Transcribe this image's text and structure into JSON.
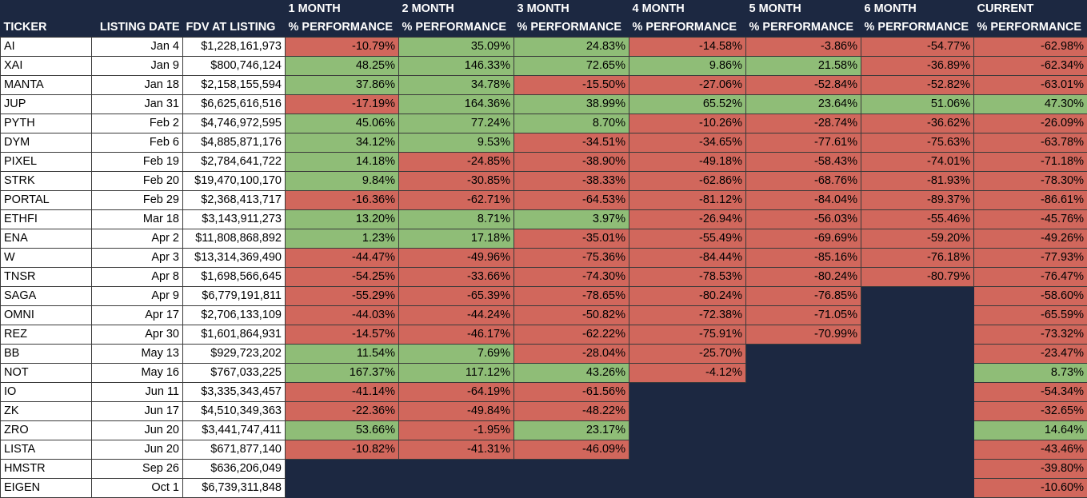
{
  "header": {
    "top": [
      "",
      "",
      "",
      "1 MONTH",
      "2 MONTH",
      "3 MONTH",
      "4 MONTH",
      "5 MONTH",
      "6 MONTH",
      "CURRENT"
    ],
    "bottom": [
      "TICKER",
      "LISTING DATE",
      "FDV AT LISTING",
      "% PERFORMANCE",
      "% PERFORMANCE",
      "% PERFORMANCE",
      "% PERFORMANCE",
      "% PERFORMANCE",
      "% PERFORMANCE",
      "% PERFORMANCE"
    ]
  },
  "colors": {
    "background": "#1c2841",
    "positive": "#8fbd77",
    "negative": "#d1675c"
  },
  "rows": [
    [
      "AI",
      "Jan 4",
      "$1,228,161,973",
      "-10.79%",
      "35.09%",
      "24.83%",
      "-14.58%",
      "-3.86%",
      "-54.77%",
      "-62.98%"
    ],
    [
      "XAI",
      "Jan 9",
      "$800,746,124",
      "48.25%",
      "146.33%",
      "72.65%",
      "9.86%",
      "21.58%",
      "-36.89%",
      "-62.34%"
    ],
    [
      "MANTA",
      "Jan 18",
      "$2,158,155,594",
      "37.86%",
      "34.78%",
      "-15.50%",
      "-27.06%",
      "-52.84%",
      "-52.82%",
      "-63.01%"
    ],
    [
      "JUP",
      "Jan 31",
      "$6,625,616,516",
      "-17.19%",
      "164.36%",
      "38.99%",
      "65.52%",
      "23.64%",
      "51.06%",
      "47.30%"
    ],
    [
      "PYTH",
      "Feb 2",
      "$4,746,972,595",
      "45.06%",
      "77.24%",
      "8.70%",
      "-10.26%",
      "-28.74%",
      "-36.62%",
      "-26.09%"
    ],
    [
      "DYM",
      "Feb 6",
      "$4,885,871,176",
      "34.12%",
      "9.53%",
      "-34.51%",
      "-34.65%",
      "-77.61%",
      "-75.63%",
      "-63.78%"
    ],
    [
      "PIXEL",
      "Feb 19",
      "$2,784,641,722",
      "14.18%",
      "-24.85%",
      "-38.90%",
      "-49.18%",
      "-58.43%",
      "-74.01%",
      "-71.18%"
    ],
    [
      "STRK",
      "Feb 20",
      "$19,470,100,170",
      "9.84%",
      "-30.85%",
      "-38.33%",
      "-62.86%",
      "-68.76%",
      "-81.93%",
      "-78.30%"
    ],
    [
      "PORTAL",
      "Feb 29",
      "$2,368,413,717",
      "-16.36%",
      "-62.71%",
      "-64.53%",
      "-81.12%",
      "-84.04%",
      "-89.37%",
      "-86.61%"
    ],
    [
      "ETHFI",
      "Mar 18",
      "$3,143,911,273",
      "13.20%",
      "8.71%",
      "3.97%",
      "-26.94%",
      "-56.03%",
      "-55.46%",
      "-45.76%"
    ],
    [
      "ENA",
      "Apr 2",
      "$11,808,868,892",
      "1.23%",
      "17.18%",
      "-35.01%",
      "-55.49%",
      "-69.69%",
      "-59.20%",
      "-49.26%"
    ],
    [
      "W",
      "Apr 3",
      "$13,314,369,490",
      "-44.47%",
      "-49.96%",
      "-75.36%",
      "-84.44%",
      "-85.16%",
      "-76.18%",
      "-77.93%"
    ],
    [
      "TNSR",
      "Apr 8",
      "$1,698,566,645",
      "-54.25%",
      "-33.66%",
      "-74.30%",
      "-78.53%",
      "-80.24%",
      "-80.79%",
      "-76.47%"
    ],
    [
      "SAGA",
      "Apr 9",
      "$6,779,191,811",
      "-55.29%",
      "-65.39%",
      "-78.65%",
      "-80.24%",
      "-76.85%",
      "",
      "-58.60%"
    ],
    [
      "OMNI",
      "Apr 17",
      "$2,706,133,109",
      "-44.03%",
      "-44.24%",
      "-50.82%",
      "-72.38%",
      "-71.05%",
      "",
      "-65.59%"
    ],
    [
      "REZ",
      "Apr 30",
      "$1,601,864,931",
      "-14.57%",
      "-46.17%",
      "-62.22%",
      "-75.91%",
      "-70.99%",
      "",
      "-73.32%"
    ],
    [
      "BB",
      "May 13",
      "$929,723,202",
      "11.54%",
      "7.69%",
      "-28.04%",
      "-25.70%",
      "",
      "",
      "-23.47%"
    ],
    [
      "NOT",
      "May 16",
      "$767,033,225",
      "167.37%",
      "117.12%",
      "43.26%",
      "-4.12%",
      "",
      "",
      "8.73%"
    ],
    [
      "IO",
      "Jun 11",
      "$3,335,343,457",
      "-41.14%",
      "-64.19%",
      "-61.56%",
      "",
      "",
      "",
      "-54.34%"
    ],
    [
      "ZK",
      "Jun 17",
      "$4,510,349,363",
      "-22.36%",
      "-49.84%",
      "-48.22%",
      "",
      "",
      "",
      "-32.65%"
    ],
    [
      "ZRO",
      "Jun 20",
      "$3,441,747,411",
      "53.66%",
      "-1.95%",
      "23.17%",
      "",
      "",
      "",
      "14.64%"
    ],
    [
      "LISTA",
      "Jun 20",
      "$671,877,140",
      "-10.82%",
      "-41.31%",
      "-46.09%",
      "",
      "",
      "",
      "-43.46%"
    ],
    [
      "HMSTR",
      "Sep 26",
      "$636,206,049",
      "",
      "",
      "",
      "",
      "",
      "",
      "-39.80%"
    ],
    [
      "EIGEN",
      "Oct 1",
      "$6,739,311,848",
      "",
      "",
      "",
      "",
      "",
      "",
      "-10.60%"
    ]
  ]
}
